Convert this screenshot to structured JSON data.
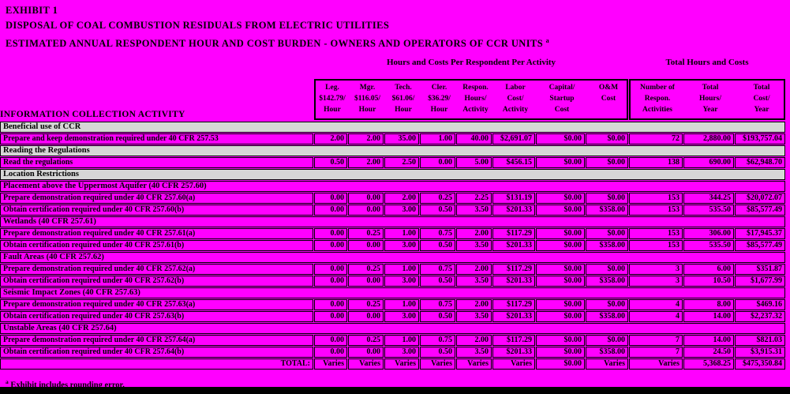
{
  "colors": {
    "background": "#FF00FF",
    "section_row_bg": "#D6D6D6",
    "border": "#000000"
  },
  "title": {
    "line1": "EXHIBIT 1",
    "line2": "DISPOSAL OF COAL COMBUSTION RESIDUALS FROM ELECTRIC UTILITIES",
    "line3": "ESTIMATED ANNUAL RESPONDENT HOUR AND COST BURDEN - OWNERS AND OPERATORS OF CCR UNITS",
    "line3_superscript": "a"
  },
  "table": {
    "activity_header": "INFORMATION COLLECTION ACTIVITY",
    "group_headers": {
      "per_respondent": "Hours and Costs Per Respondent Per Activity",
      "totals": "Total Hours and Costs"
    },
    "columns": [
      {
        "name": "legal-rate",
        "lines": [
          "Leg.",
          "$142.79/",
          "Hour"
        ]
      },
      {
        "name": "manager-rate",
        "lines": [
          "Mgr.",
          "$116.05/",
          "Hour"
        ]
      },
      {
        "name": "technical-rate",
        "lines": [
          "Tech.",
          "$61.06/",
          "Hour"
        ]
      },
      {
        "name": "clerical-rate",
        "lines": [
          "Cler.",
          "$36.29/",
          "Hour"
        ]
      },
      {
        "name": "respondent-hours-per-activity",
        "lines": [
          "Respon.",
          "Hours/",
          "Activity"
        ]
      },
      {
        "name": "labor-cost-per-activity",
        "lines": [
          "Labor",
          "Cost/",
          "Activity"
        ]
      },
      {
        "name": "capital-startup-cost",
        "lines": [
          "Capital/",
          "Startup",
          "Cost"
        ]
      },
      {
        "name": "om-cost",
        "lines": [
          "",
          "O&M",
          "Cost"
        ]
      },
      {
        "name": "number-of-respondent-activities",
        "lines": [
          "Number of",
          "Respon.",
          "Activities"
        ]
      },
      {
        "name": "total-hours-per-year",
        "lines": [
          "Total",
          "Hours/",
          "Year"
        ]
      },
      {
        "name": "total-cost-per-year",
        "lines": [
          "Total",
          "Cost/",
          "Year"
        ]
      }
    ],
    "rows": [
      {
        "type": "section",
        "label": "Beneficial use of CCR"
      },
      {
        "type": "data",
        "label": "Prepare and keep demonstration required under 40 CFR 257.53",
        "values": [
          "2.00",
          "2.00",
          "35.00",
          "1.00",
          "40.00",
          "$2,691.07",
          "$0.00",
          "$0.00",
          "72",
          "2,880.00",
          "$193,757.04"
        ]
      },
      {
        "type": "section",
        "label": "Reading the Regulations"
      },
      {
        "type": "data",
        "label": "Read the regulations",
        "values": [
          "0.50",
          "2.00",
          "2.50",
          "0.00",
          "5.00",
          "$456.15",
          "$0.00",
          "$0.00",
          "138",
          "690.00",
          "$62,948.70"
        ]
      },
      {
        "type": "section",
        "label": "Location Restrictions"
      },
      {
        "type": "subsection",
        "label": "Placement above the Uppermost Aquifer (40 CFR 257.60)"
      },
      {
        "type": "data",
        "label": "Prepare demonstration required under 40 CFR 257.60(a)",
        "values": [
          "0.00",
          "0.00",
          "2.00",
          "0.25",
          "2.25",
          "$131.19",
          "$0.00",
          "$0.00",
          "153",
          "344.25",
          "$20,072.07"
        ]
      },
      {
        "type": "data",
        "label": "Obtain certification required under 40 CFR 257.60(b)",
        "values": [
          "0.00",
          "0.00",
          "3.00",
          "0.50",
          "3.50",
          "$201.33",
          "$0.00",
          "$358.00",
          "153",
          "535.50",
          "$85,577.49"
        ]
      },
      {
        "type": "subsection",
        "label": "Wetlands (40 CFR 257.61)"
      },
      {
        "type": "data",
        "label": "Prepare demonstration required under 40 CFR 257.61(a)",
        "values": [
          "0.00",
          "0.25",
          "1.00",
          "0.75",
          "2.00",
          "$117.29",
          "$0.00",
          "$0.00",
          "153",
          "306.00",
          "$17,945.37"
        ]
      },
      {
        "type": "data",
        "label": "Obtain certification required under 40 CFR 257.61(b)",
        "values": [
          "0.00",
          "0.00",
          "3.00",
          "0.50",
          "3.50",
          "$201.33",
          "$0.00",
          "$358.00",
          "153",
          "535.50",
          "$85,577.49"
        ]
      },
      {
        "type": "subsection",
        "label": "Fault Areas (40 CFR 257.62)"
      },
      {
        "type": "data",
        "label": "Prepare demonstration required under 40 CFR 257.62(a)",
        "values": [
          "0.00",
          "0.25",
          "1.00",
          "0.75",
          "2.00",
          "$117.29",
          "$0.00",
          "$0.00",
          "3",
          "6.00",
          "$351.87"
        ]
      },
      {
        "type": "data",
        "label": "Obtain certification required under 40 CFR 257.62(b)",
        "values": [
          "0.00",
          "0.00",
          "3.00",
          "0.50",
          "3.50",
          "$201.33",
          "$0.00",
          "$358.00",
          "3",
          "10.50",
          "$1,677.99"
        ]
      },
      {
        "type": "subsection",
        "label": "Seismic Impact Zones (40 CFR 257.63)"
      },
      {
        "type": "data",
        "label": "Prepare demonstration required under 40 CFR 257.63(a)",
        "values": [
          "0.00",
          "0.25",
          "1.00",
          "0.75",
          "2.00",
          "$117.29",
          "$0.00",
          "$0.00",
          "4",
          "8.00",
          "$469.16"
        ]
      },
      {
        "type": "data",
        "label": "Obtain certification required under 40 CFR 257.63(b)",
        "values": [
          "0.00",
          "0.00",
          "3.00",
          "0.50",
          "3.50",
          "$201.33",
          "$0.00",
          "$358.00",
          "4",
          "14.00",
          "$2,237.32"
        ]
      },
      {
        "type": "subsection",
        "label": "Unstable Areas (40 CFR 257.64)"
      },
      {
        "type": "data",
        "label": "Prepare demonstration required under 40 CFR 257.64(a)",
        "values": [
          "0.00",
          "0.25",
          "1.00",
          "0.75",
          "2.00",
          "$117.29",
          "$0.00",
          "$0.00",
          "7",
          "14.00",
          "$821.03"
        ]
      },
      {
        "type": "data",
        "label": "Obtain certification required under 40 CFR 257.64(b)",
        "values": [
          "0.00",
          "0.00",
          "3.00",
          "0.50",
          "3.50",
          "$201.33",
          "$0.00",
          "$358.00",
          "7",
          "24.50",
          "$3,915.31"
        ]
      },
      {
        "type": "total",
        "label": "TOTAL:",
        "values": [
          "Varies",
          "Varies",
          "Varies",
          "Varies",
          "Varies",
          "Varies",
          "$0.00",
          "Varies",
          "Varies",
          "5,368.25",
          "$475,350.84"
        ]
      }
    ]
  },
  "footnote": {
    "superscript": "a",
    "text": "Exhibit includes rounding error."
  }
}
